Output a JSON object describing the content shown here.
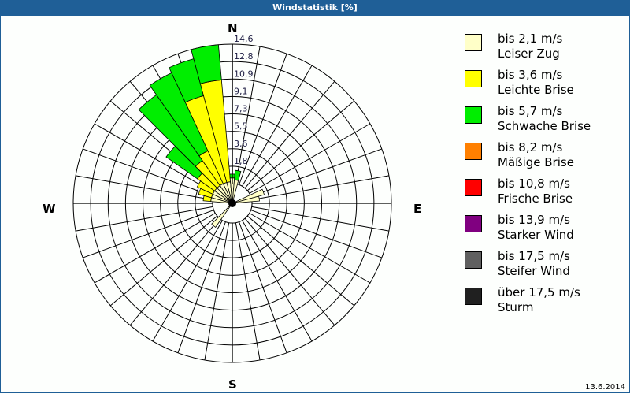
{
  "window": {
    "title": "Windstatistik [%]",
    "date": "13.6.2014"
  },
  "compass": {
    "n": "N",
    "e": "E",
    "s": "S",
    "w": "W"
  },
  "legend": [
    {
      "speed": "bis 2,1 m/s",
      "name": "Leiser Zug",
      "color": "#ffffc8"
    },
    {
      "speed": "bis 3,6 m/s",
      "name": "Leichte Brise",
      "color": "#ffff00"
    },
    {
      "speed": "bis 5,7 m/s",
      "name": "Schwache Brise",
      "color": "#00ee00"
    },
    {
      "speed": "bis 8,2 m/s",
      "name": "Mäßige Brise",
      "color": "#ff8000"
    },
    {
      "speed": "bis 10,8 m/s",
      "name": "Frische Brise",
      "color": "#ff0000"
    },
    {
      "speed": "bis 13,9 m/s",
      "name": "Starker Wind",
      "color": "#800080"
    },
    {
      "speed": "bis 17,5 m/s",
      "name": "Steifer Wind",
      "color": "#606060"
    },
    {
      "speed": "über 17,5 m/s",
      "name": "Sturm",
      "color": "#202020"
    }
  ],
  "chart_data": {
    "type": "polar-bar (wind rose)",
    "title": "Windstatistik [%]",
    "unit": "%",
    "radial_ticks": [
      "1,8",
      "3,6",
      "5,5",
      "7,3",
      "9,1",
      "10,9",
      "12,8",
      "14,6"
    ],
    "radial_max": 14.6,
    "sector_width_deg": 10,
    "series_order": [
      "bis 2,1 m/s",
      "bis 3,6 m/s",
      "bis 5,7 m/s"
    ],
    "petals": [
      {
        "dir_deg": 350,
        "cumulative": [
          0.2,
          10.9,
          14.6
        ]
      },
      {
        "dir_deg": 340,
        "cumulative": [
          0.2,
          9.6,
          13.6
        ]
      },
      {
        "dir_deg": 330,
        "cumulative": [
          0.2,
          4.0,
          13.0
        ]
      },
      {
        "dir_deg": 320,
        "cumulative": [
          0.2,
          3.4,
          11.8
        ]
      },
      {
        "dir_deg": 310,
        "cumulative": [
          0.2,
          2.4,
          6.4
        ]
      },
      {
        "dir_deg": 300,
        "cumulative": [
          0.2,
          2.0,
          2.0
        ]
      },
      {
        "dir_deg": 290,
        "cumulative": [
          0.2,
          1.6,
          1.6
        ]
      },
      {
        "dir_deg": 280,
        "cumulative": [
          0.2,
          1.0,
          1.0
        ]
      },
      {
        "dir_deg": 0,
        "cumulative": [
          0.6,
          0.6,
          1.0
        ]
      },
      {
        "dir_deg": 10,
        "cumulative": [
          0.4,
          0.4,
          1.4
        ]
      },
      {
        "dir_deg": 70,
        "cumulative": [
          1.4,
          1.4,
          1.4
        ]
      },
      {
        "dir_deg": 80,
        "cumulative": [
          0.8,
          0.8,
          0.8
        ]
      },
      {
        "dir_deg": 220,
        "cumulative": [
          1.0,
          1.0,
          1.0
        ]
      }
    ]
  }
}
